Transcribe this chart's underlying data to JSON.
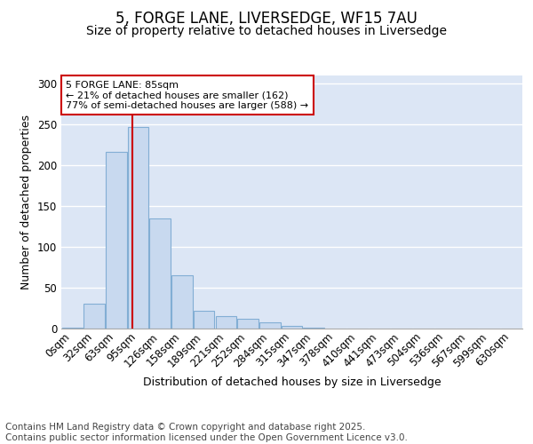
{
  "title": "5, FORGE LANE, LIVERSEDGE, WF15 7AU",
  "subtitle": "Size of property relative to detached houses in Liversedge",
  "xlabel": "Distribution of detached houses by size in Liversedge",
  "ylabel": "Number of detached properties",
  "bar_labels": [
    "0sqm",
    "32sqm",
    "63sqm",
    "95sqm",
    "126sqm",
    "158sqm",
    "189sqm",
    "221sqm",
    "252sqm",
    "284sqm",
    "315sqm",
    "347sqm",
    "378sqm",
    "410sqm",
    "441sqm",
    "473sqm",
    "504sqm",
    "536sqm",
    "567sqm",
    "599sqm",
    "630sqm"
  ],
  "bar_heights": [
    1,
    30,
    217,
    247,
    135,
    65,
    22,
    15,
    12,
    8,
    3,
    1,
    0,
    0,
    0,
    0,
    0,
    0,
    0,
    0,
    0
  ],
  "bar_color": "#c8d9ef",
  "bar_edge_color": "#82aed4",
  "background_color": "#dce6f5",
  "grid_color": "#ffffff",
  "fig_background": "#ffffff",
  "red_line_x": 2.72,
  "annotation_text": "5 FORGE LANE: 85sqm\n← 21% of detached houses are smaller (162)\n77% of semi-detached houses are larger (588) →",
  "annotation_box_color": "#ffffff",
  "annotation_box_edge": "#cc0000",
  "ylim": [
    0,
    310
  ],
  "yticks": [
    0,
    50,
    100,
    150,
    200,
    250,
    300
  ],
  "footer_text": "Contains HM Land Registry data © Crown copyright and database right 2025.\nContains public sector information licensed under the Open Government Licence v3.0.",
  "title_fontsize": 12,
  "subtitle_fontsize": 10,
  "label_fontsize": 9,
  "tick_fontsize": 8.5,
  "footer_fontsize": 7.5
}
